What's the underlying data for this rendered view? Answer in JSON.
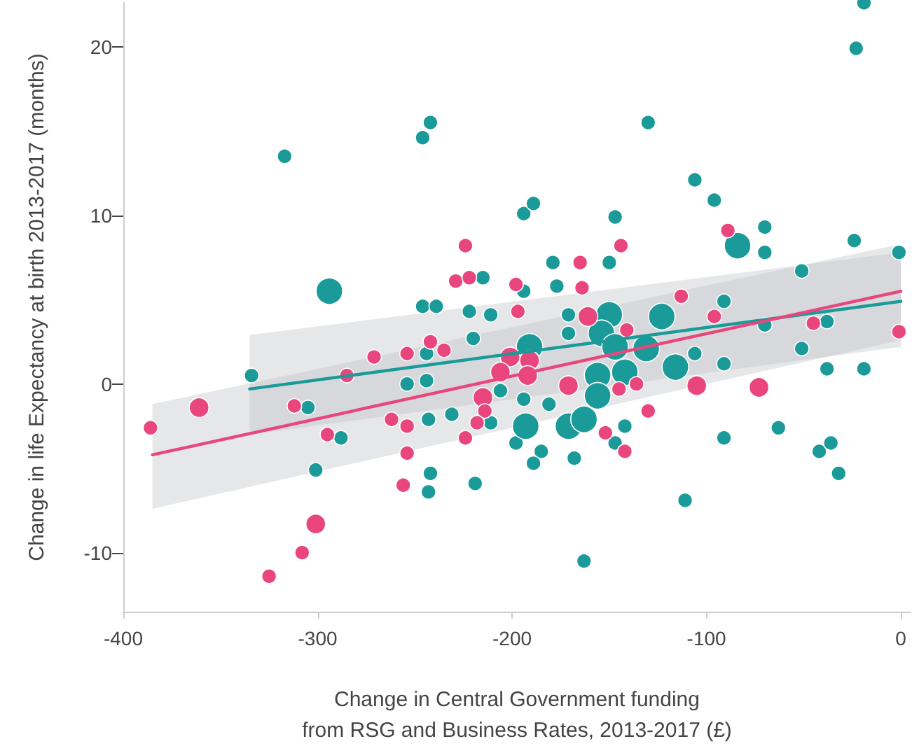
{
  "chart_data": {
    "type": "bubble",
    "xlabel": "Change in Central Government funding\nfrom RSG and Business Rates, 2013-2017 (£)",
    "ylabel": "Change in life Expectancy at birth 2013-2017 (months)",
    "xlim": [
      -400,
      5
    ],
    "xticks": [
      -400,
      -300,
      -200,
      -100,
      0
    ],
    "ylim": [
      -13.5,
      22.6
    ],
    "yticks": [
      -10,
      0,
      10,
      20
    ],
    "series": [
      {
        "marker": "circle",
        "color": "#1a9a98",
        "x": [
          -317,
          -242,
          -246,
          -194,
          -189,
          -215,
          -194,
          -294,
          -246,
          -239,
          -222,
          -211,
          -220,
          -244,
          -334,
          -254,
          -244,
          -305,
          -288,
          -301,
          -243,
          -231,
          -242,
          -243,
          -219,
          -211,
          -206,
          -198,
          -19,
          -23,
          -130,
          -106,
          -96,
          -147,
          -84,
          -70,
          -70,
          -24,
          -1,
          -179,
          -150,
          -177,
          -51,
          -91,
          -171,
          -171,
          -150,
          -154,
          -147,
          -123,
          -70,
          -38,
          -191,
          -131,
          -106,
          -51,
          -116,
          -91,
          -38,
          -19,
          -156,
          -142,
          -194,
          -181,
          -156,
          -193,
          -171,
          -163,
          -142,
          -147,
          -185,
          -189,
          -168,
          -91,
          -63,
          -42,
          -36,
          -32,
          -111,
          -163
        ],
        "values": [
          13.5,
          15.5,
          14.6,
          10.1,
          10.7,
          6.3,
          5.5,
          5.5,
          4.6,
          4.6,
          4.3,
          4.1,
          2.7,
          1.8,
          0.5,
          0.0,
          0.2,
          -1.4,
          -3.2,
          -5.1,
          -2.1,
          -1.8,
          -5.3,
          -6.4,
          -5.9,
          -2.3,
          -0.4,
          -3.5,
          22.6,
          19.9,
          15.5,
          12.1,
          10.9,
          9.9,
          8.2,
          9.3,
          7.8,
          8.5,
          7.8,
          7.2,
          7.2,
          5.8,
          6.7,
          4.9,
          4.1,
          3.0,
          4.1,
          3.0,
          2.2,
          4.0,
          3.5,
          3.7,
          2.2,
          2.1,
          1.8,
          2.1,
          1.0,
          1.2,
          0.9,
          0.9,
          0.5,
          0.7,
          -0.9,
          -1.2,
          -0.7,
          -2.5,
          -2.5,
          -2.1,
          -2.5,
          -3.5,
          -4.0,
          -4.7,
          -4.4,
          -3.2,
          -2.6,
          -4.0,
          -3.5,
          -5.3,
          -6.9,
          -10.5
        ],
        "sizes": [
          0.3,
          0.3,
          0.3,
          0.3,
          0.3,
          0.3,
          0.3,
          1,
          0.3,
          0.3,
          0.3,
          0.3,
          0.3,
          0.3,
          0.3,
          0.3,
          0.3,
          0.3,
          0.3,
          0.3,
          0.3,
          0.3,
          0.3,
          0.3,
          0.3,
          0.3,
          0.3,
          0.3,
          0.3,
          0.3,
          0.3,
          0.3,
          0.3,
          0.3,
          1,
          0.3,
          0.3,
          0.3,
          0.3,
          0.3,
          0.3,
          0.3,
          0.3,
          0.3,
          0.3,
          0.3,
          1,
          1,
          1,
          1,
          0.3,
          0.3,
          1,
          1,
          0.3,
          0.3,
          1,
          0.3,
          0.3,
          0.3,
          1,
          1,
          0.3,
          0.3,
          1,
          1,
          1,
          1,
          0.3,
          0.3,
          0.3,
          0.3,
          0.3,
          0.3,
          0.3,
          0.3,
          0.3,
          0.3,
          0.3,
          0.3
        ]
      },
      {
        "marker": "circle",
        "color": "#e8467c",
        "x": [
          -224,
          -229,
          -222,
          -198,
          -197,
          -242,
          -235,
          -254,
          -271,
          -285,
          -201,
          -206,
          -386,
          -361,
          -312,
          -295,
          -301,
          -308,
          -325,
          -262,
          -254,
          -254,
          -256,
          -224,
          -215,
          -214,
          -218,
          -89,
          -144,
          -165,
          -164,
          -113,
          -161,
          -141,
          -96,
          -45,
          -1,
          -191,
          -192,
          -171,
          -136,
          -105,
          -73,
          -145,
          -130,
          -152,
          -142
        ],
        "values": [
          8.2,
          6.1,
          6.3,
          5.9,
          4.3,
          2.5,
          2.0,
          1.8,
          1.6,
          0.5,
          1.6,
          0.7,
          -2.6,
          -1.4,
          -1.3,
          -3.0,
          -8.3,
          -10.0,
          -11.4,
          -2.1,
          -2.5,
          -4.1,
          -6.0,
          -3.2,
          -0.8,
          -1.6,
          -2.3,
          9.1,
          8.2,
          7.2,
          5.7,
          5.2,
          4.0,
          3.2,
          4.0,
          3.6,
          3.1,
          1.4,
          0.5,
          -0.1,
          0.0,
          -0.1,
          -0.2,
          -0.3,
          -1.6,
          -2.9,
          -4.0
        ],
        "sizes": [
          0.3,
          0.3,
          0.3,
          0.3,
          0.3,
          0.3,
          0.3,
          0.3,
          0.3,
          0.3,
          0.55,
          0.55,
          0.3,
          0.55,
          0.3,
          0.3,
          0.55,
          0.3,
          0.3,
          0.3,
          0.3,
          0.3,
          0.3,
          0.3,
          0.55,
          0.3,
          0.3,
          0.3,
          0.3,
          0.3,
          0.3,
          0.3,
          0.55,
          0.3,
          0.3,
          0.3,
          0.3,
          0.55,
          0.55,
          0.55,
          0.3,
          0.55,
          0.55,
          0.3,
          0.3,
          0.3,
          0.3
        ]
      },
      {
        "type": "line",
        "marker": "none",
        "color": "#1a9a98",
        "x": [
          -335,
          0
        ],
        "values": [
          -0.3,
          4.9
        ],
        "lower": [
          -3.0,
          2.2
        ],
        "upper": [
          2.9,
          7.8
        ]
      },
      {
        "type": "line",
        "marker": "none",
        "color": "#e8467c",
        "x": [
          -385,
          0
        ],
        "values": [
          -4.2,
          5.5
        ],
        "lower": [
          -7.4,
          2.6
        ],
        "upper": [
          -1.2,
          8.3
        ]
      }
    ]
  }
}
